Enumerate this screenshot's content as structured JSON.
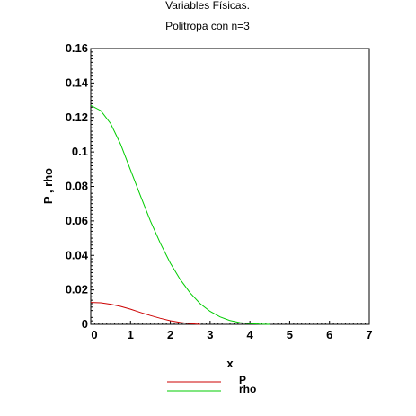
{
  "chart_data": {
    "type": "line",
    "title": "Variables Físicas.",
    "subtitle": "Politropa con n=3",
    "xlabel": "x",
    "ylabel": "P , rho",
    "xlim": [
      0,
      7
    ],
    "ylim": [
      0,
      0.16
    ],
    "x_ticks": [
      "0",
      "1",
      "2",
      "3",
      "4",
      "5",
      "6",
      "7"
    ],
    "y_ticks": [
      "0",
      "0.02",
      "0.04",
      "0.06",
      "0.08",
      "0.1",
      "0.12",
      "0.14",
      "0.16"
    ],
    "grid": false,
    "legend_position": "bottom",
    "series": [
      {
        "name": "P",
        "color": "#cc0000",
        "x": [
          0,
          0.25,
          0.5,
          0.75,
          1.0,
          1.25,
          1.5,
          1.75,
          2.0,
          2.25,
          2.5,
          2.75
        ],
        "y": [
          0.0127,
          0.0125,
          0.0117,
          0.0104,
          0.0088,
          0.0069,
          0.0051,
          0.0035,
          0.0021,
          0.0011,
          0.0004,
          0.0
        ]
      },
      {
        "name": "rho",
        "color": "#00cc00",
        "x": [
          0,
          0.25,
          0.5,
          0.75,
          1.0,
          1.25,
          1.5,
          1.75,
          2.0,
          2.25,
          2.5,
          2.75,
          3.0,
          3.25,
          3.5,
          3.75,
          4.0,
          4.25,
          4.5
        ],
        "y": [
          0.127,
          0.124,
          0.1165,
          0.1045,
          0.0895,
          0.0745,
          0.06,
          0.047,
          0.0355,
          0.026,
          0.0182,
          0.012,
          0.0075,
          0.0043,
          0.0022,
          0.001,
          0.0004,
          0.0001,
          0.0
        ]
      }
    ]
  }
}
